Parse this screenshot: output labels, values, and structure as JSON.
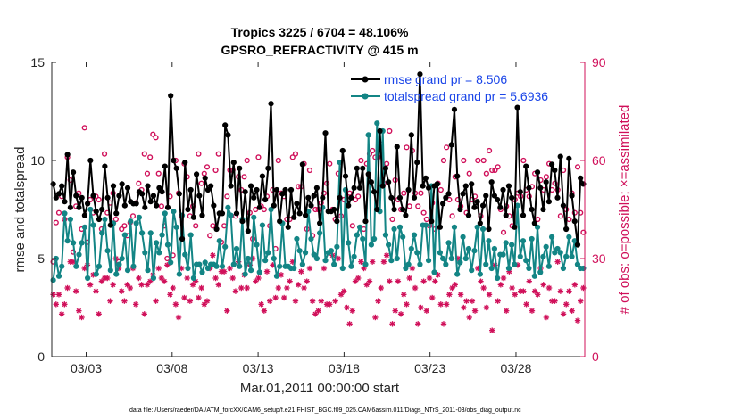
{
  "chart_data": {
    "type": "line",
    "title": "Tropics 3225 / 6704 = 48.106%",
    "subtitle": "GPSRO_REFRACTIVITY @ 415 m",
    "xlabel": "Mar.01,2011 00:00:00 start",
    "ylabel": "rmse and totalspread",
    "y2label": "# of obs: o=possible; ×=assimilated",
    "footer": "data file: /Users/raeder/DAI/ATM_forcXX/CAM6_setup/f.e21.FHIST_BGC.f09_025.CAM6assim.011/Diags_NTrS_2011-03/obs_diag_output.nc",
    "xlim": [
      1.0,
      32.0
    ],
    "ylim": [
      0,
      15
    ],
    "y2lim": [
      0,
      90
    ],
    "xticks": [
      3,
      8,
      13,
      18,
      23,
      28
    ],
    "xtick_labels": [
      "03/03",
      "03/08",
      "03/13",
      "03/18",
      "03/23",
      "03/28"
    ],
    "yticks": [
      0,
      5,
      10,
      15
    ],
    "ytick_labels": [
      "0",
      "5",
      "10",
      "15"
    ],
    "y2ticks": [
      0,
      30,
      60,
      90
    ],
    "y2tick_labels": [
      "0",
      "30",
      "60",
      "90"
    ],
    "legend_position": "top-right",
    "colors": {
      "rmse": "#000000",
      "spread": "#138585",
      "obs": "#d0105a",
      "legend_text": "#1a45e8"
    },
    "series": [
      {
        "name": "rmse grand pr = 8.506",
        "key": "rmse",
        "values": [
          8.8,
          8.1,
          8.3,
          8.7,
          7.9,
          10.3,
          7.6,
          9.4,
          8.2,
          7.6,
          8.1,
          7.2,
          7.8,
          10.0,
          8.2,
          7.4,
          7.0,
          7.5,
          9.7,
          8.1,
          6.7,
          8.7,
          7.3,
          8.2,
          8.8,
          7.7,
          8.6,
          7.9,
          7.8,
          7.8,
          8.4,
          8.3,
          7.6,
          8.7,
          7.9,
          8.2,
          7.7,
          8.6,
          8.4,
          9.7,
          7.6,
          13.3,
          10.0,
          9.6,
          8.3,
          6.0,
          9.9,
          7.5,
          8.5,
          7.1,
          9.3,
          8.2,
          7.2,
          9.1,
          8.5,
          8.7,
          7.7,
          6.5,
          7.3,
          7.3,
          11.8,
          11.3,
          8.7,
          9.9,
          7.3,
          9.6,
          6.9,
          8.4,
          6.4,
          8.7,
          8.1,
          8.5,
          7.6,
          9.2,
          8.0,
          9.6,
          12.9,
          7.7,
          8.5,
          6.9,
          8.3,
          8.5,
          6.6,
          8.5,
          7.1,
          7.8,
          7.3,
          9.8,
          7.2,
          8.1,
          7.7,
          8.2,
          8.6,
          6.8,
          8.1,
          11.4,
          7.4,
          7.4,
          7.5,
          6.9,
          8.1,
          10.5,
          9.2,
          7.7,
          8.1,
          8.6,
          9.6,
          8.6,
          9.6,
          6.9,
          9.3,
          8.9,
          8.4,
          7.5,
          11.5,
          8.7,
          9.6,
          8.9,
          8.1,
          7.5,
          10.7,
          8.1,
          7.5,
          7.2,
          8.5,
          11.3,
          8.1,
          9.9,
          14.4,
          8.7,
          9.1,
          8.6,
          6.9,
          8.7,
          8.8,
          6.6,
          7.8,
          8.1,
          8.3,
          10.8,
          12.6,
          9.2,
          7.5,
          8.3,
          8.7,
          7.2,
          8.8,
          7.6,
          7.9,
          6.8,
          7.7,
          8.2,
          6.5,
          8.9,
          8.2,
          8.0,
          7.6,
          8.5,
          7.2,
          8.7,
          8.1,
          6.6,
          12.7,
          8.4,
          7.2,
          9.7,
          8.6,
          7.5,
          6.8,
          9.4,
          8.6,
          7.5,
          8.9,
          7.9,
          9.8,
          9.5,
          8.1,
          10.2,
          7.7,
          6.5,
          10.1,
          8.2,
          6.9,
          5.7,
          9.1,
          8.8
        ]
      },
      {
        "name": "totalspread grand pr = 5.6936",
        "key": "spread",
        "values": [
          3.9,
          5.0,
          4.1,
          4.6,
          7.3,
          5.9,
          7.0,
          5.8,
          4.6,
          5.2,
          5.8,
          6.6,
          4.0,
          7.5,
          6.7,
          4.2,
          4.6,
          6.3,
          7.0,
          5.4,
          4.4,
          6.8,
          4.2,
          4.7,
          5.0,
          6.2,
          4.4,
          6.9,
          4.6,
          6.8,
          7.1,
          6.3,
          5.3,
          4.4,
          6.3,
          4.0,
          5.8,
          5.3,
          6.2,
          7.3,
          5.7,
          4.8,
          7.4,
          6.6,
          4.2,
          7.2,
          5.2,
          4.5,
          6.2,
          4.0,
          4.7,
          4.7,
          4.3,
          4.8,
          4.5,
          4.7,
          4.7,
          4.6,
          5.9,
          4.6,
          5.6,
          7.6,
          7.2,
          4.7,
          5.5,
          4.6,
          7.0,
          4.2,
          5.0,
          4.4,
          7.1,
          5.7,
          4.3,
          6.7,
          4.9,
          5.3,
          7.5,
          5.0,
          4.1,
          4.6,
          6.8,
          4.6,
          4.6,
          4.5,
          4.5,
          6.0,
          5.4,
          4.7,
          5.3,
          7.4,
          6.0,
          5.2,
          5.0,
          6.3,
          7.6,
          4.9,
          5.3,
          5.4,
          4.7,
          5.6,
          9.9,
          4.5,
          8.5,
          5.8,
          4.6,
          5.1,
          6.2,
          6.6,
          6.0,
          4.7,
          11.3,
          5.7,
          6.0,
          11.9,
          7.4,
          11.5,
          6.2,
          5.7,
          4.9,
          6.5,
          5.0,
          6.6,
          6.1,
          4.5,
          4.7,
          5.5,
          6.2,
          5.3,
          4.7,
          6.7,
          6.7,
          4.9,
          8.7,
          4.3,
          8.8,
          5.3,
          5.0,
          4.7,
          5.8,
          5.0,
          6.6,
          4.2,
          4.8,
          6.1,
          5.0,
          5.5,
          4.4,
          5.4,
          6.6,
          4.2,
          6.5,
          4.7,
          5.9,
          4.5,
          5.5,
          4.0,
          5.2,
          5.2,
          5.8,
          4.5,
          5.7,
          4.7,
          7.7,
          5.1,
          5.9,
          4.9,
          4.5,
          6.0,
          4.1,
          6.6,
          4.3,
          5.1,
          5.6,
          4.6,
          6.1,
          5.3,
          5.5,
          5.3,
          4.5,
          5.1,
          6.1,
          5.1,
          5.9,
          4.7,
          4.5,
          4.5
        ]
      },
      {
        "name": "possible",
        "key": "possible",
        "marker": "o",
        "values": [
          29,
          41,
          44,
          49,
          42,
          61,
          54,
          32,
          46,
          50,
          39,
          70,
          35,
          48,
          44,
          49,
          48,
          39,
          62,
          44,
          47,
          50,
          42,
          29,
          39,
          40,
          37,
          41,
          43,
          47,
          53,
          51,
          62,
          56,
          61,
          68,
          67,
          56,
          46,
          40,
          30,
          49,
          31,
          60,
          50,
          43,
          59,
          55,
          43,
          46,
          40,
          62,
          53,
          56,
          58,
          37,
          40,
          57,
          62,
          35,
          40,
          49,
          57,
          57,
          43,
          55,
          51,
          55,
          60,
          44,
          36,
          45,
          61,
          46,
          45,
          49,
          40,
          51,
          33,
          60,
          50,
          49,
          42,
          42,
          61,
          62,
          52,
          52,
          59,
          39,
          57,
          37,
          45,
          45,
          47,
          50,
          53,
          59,
          45,
          42,
          56,
          43,
          48,
          47,
          50,
          40,
          48,
          49,
          60,
          39,
          59,
          62,
          63,
          61,
          61,
          65,
          53,
          59,
          69,
          42,
          54,
          48,
          45,
          50,
          64,
          46,
          63,
          50,
          46,
          50,
          44,
          42,
          40,
          47,
          39,
          53,
          51,
          60,
          64,
          48,
          43,
          55,
          48,
          46,
          60,
          44,
          56,
          48,
          49,
          60,
          43,
          60,
          56,
          63,
          57,
          57,
          58,
          45,
          38,
          46,
          43,
          40,
          48,
          50,
          49,
          60,
          51,
          49,
          52,
          56,
          42,
          54,
          51,
          55,
          59,
          51,
          53,
          51,
          43,
          57,
          45,
          42,
          50,
          44,
          58,
          44,
          38
        ]
      },
      {
        "name": "assimilated",
        "key": "assimilated",
        "marker": "*",
        "values": [
          19,
          16,
          19,
          13,
          16,
          21,
          29,
          29,
          20,
          14,
          12,
          27,
          28,
          22,
          25,
          20,
          13,
          23,
          24,
          24,
          17,
          22,
          30,
          27,
          20,
          17,
          22,
          21,
          27,
          16,
          24,
          22,
          13,
          22,
          23,
          25,
          17,
          27,
          24,
          23,
          28,
          19,
          21,
          16,
          12,
          27,
          18,
          24,
          17,
          22,
          23,
          18,
          21,
          16,
          17,
          27,
          31,
          24,
          22,
          26,
          26,
          14,
          27,
          24,
          20,
          29,
          21,
          25,
          21,
          28,
          30,
          23,
          24,
          16,
          14,
          26,
          17,
          28,
          18,
          21,
          25,
          18,
          21,
          23,
          29,
          17,
          22,
          26,
          21,
          23,
          27,
          17,
          13,
          14,
          17,
          27,
          16,
          16,
          31,
          17,
          30,
          19,
          20,
          15,
          10,
          14,
          23,
          24,
          29,
          27,
          22,
          23,
          29,
          12,
          17,
          21,
          29,
          31,
          23,
          10,
          14,
          23,
          13,
          19,
          16,
          24,
          27,
          21,
          10,
          15,
          23,
          14,
          24,
          18,
          23,
          25,
          16,
          10,
          16,
          19,
          21,
          22,
          30,
          19,
          15,
          17,
          12,
          17,
          14,
          27,
          23,
          21,
          15,
          19,
          8,
          28,
          17,
          22,
          24,
          14,
          26,
          21,
          19,
          28,
          20,
          20,
          16,
          23,
          14,
          20,
          19,
          27,
          22,
          12,
          21,
          17,
          17,
          29,
          20,
          13,
          16,
          20,
          14,
          22,
          11,
          17,
          21
        ]
      }
    ],
    "legend": [
      "rmse grand pr = 8.506",
      "totalspread grand pr = 5.6936"
    ]
  }
}
